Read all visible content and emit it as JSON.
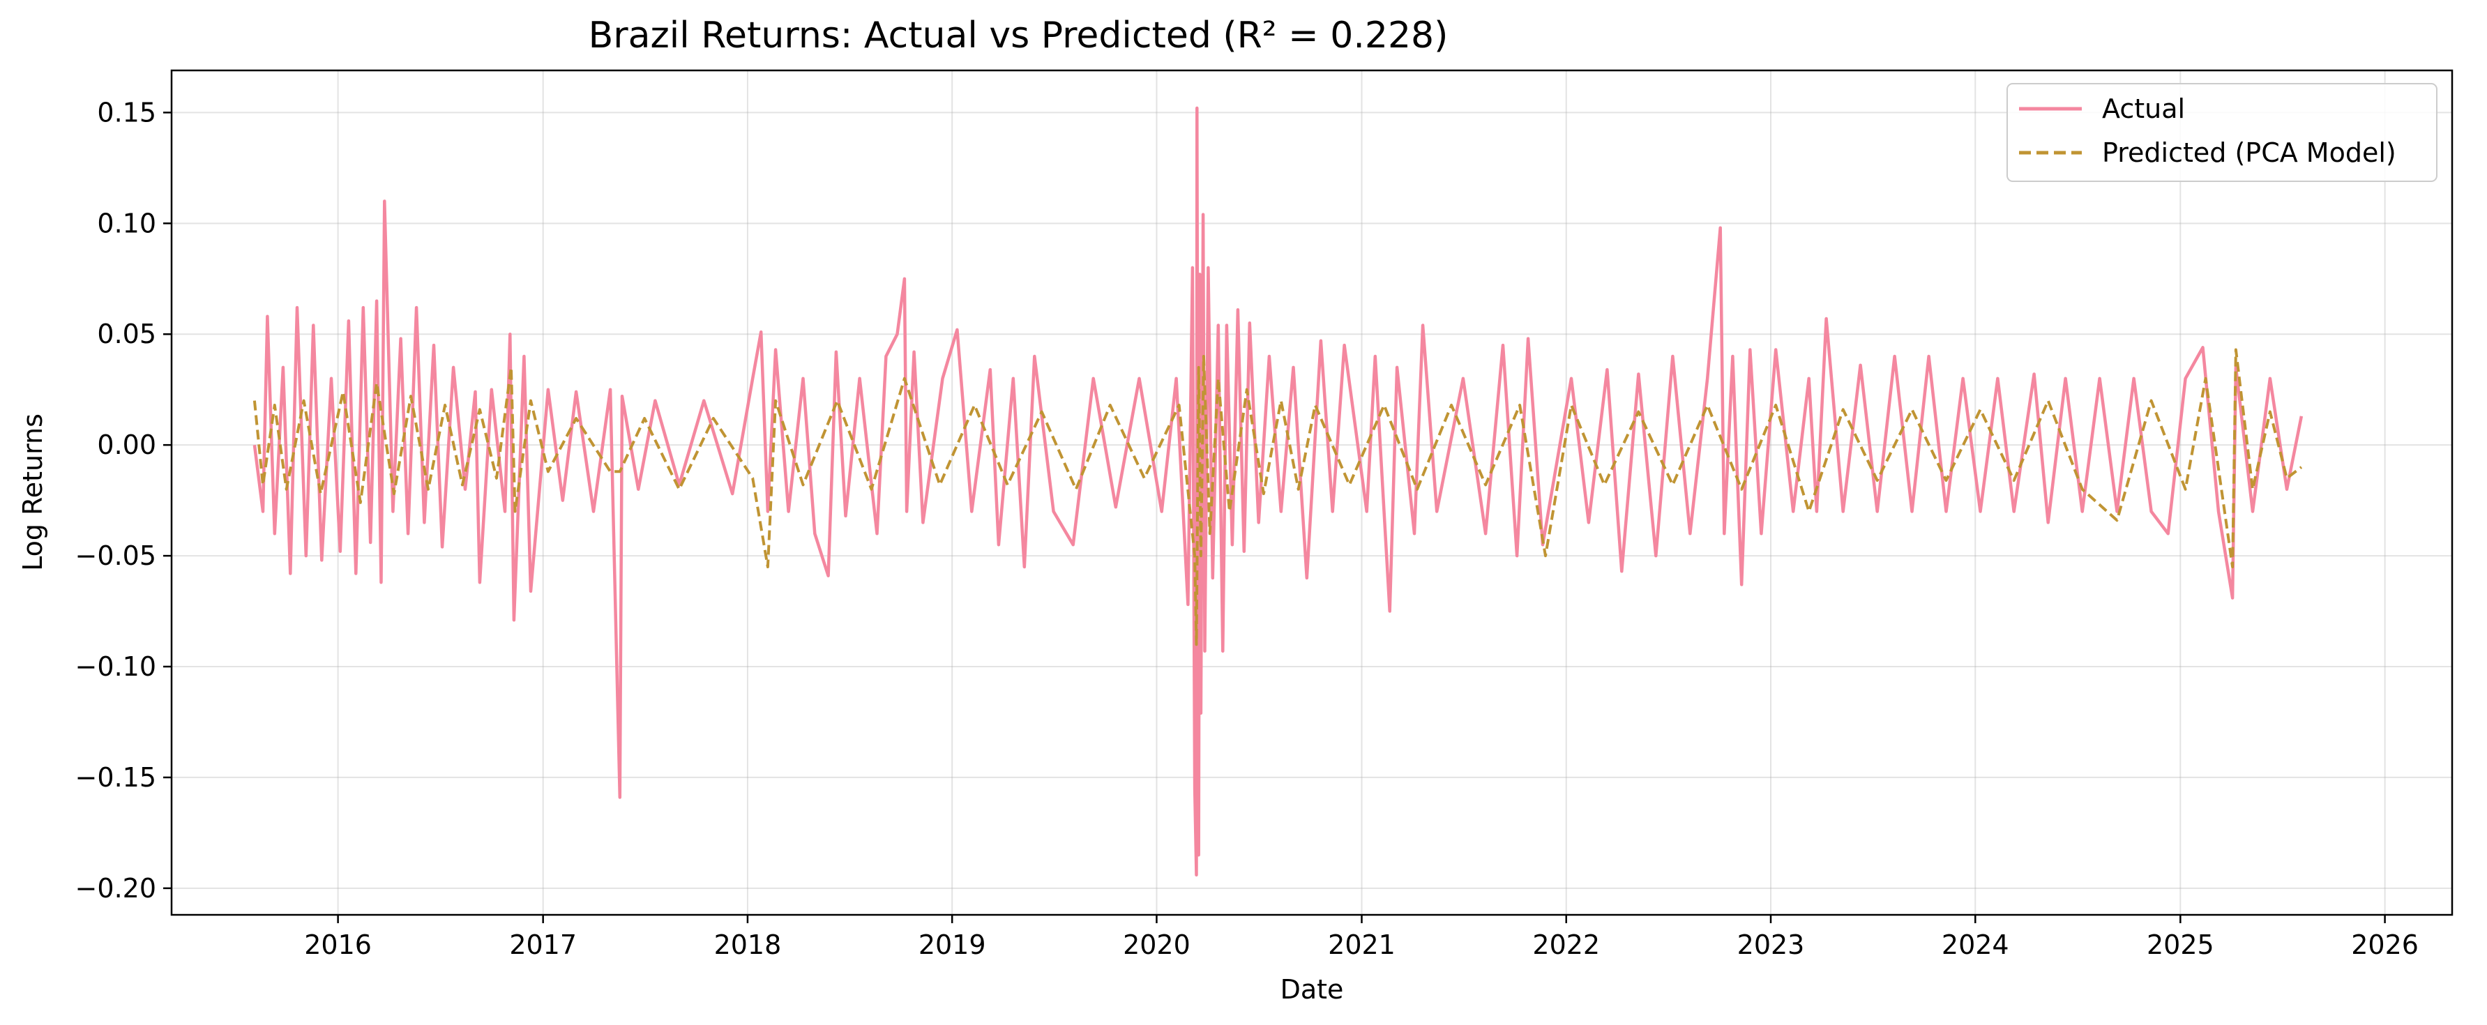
{
  "chart_data": {
    "type": "line",
    "title": "Brazil Returns: Actual vs Predicted (R² = 0.228)",
    "xlabel": "Date",
    "ylabel": "Log Returns",
    "xlim": [
      "2015-03-10",
      "2026-05-01"
    ],
    "ylim": [
      -0.212,
      0.169
    ],
    "x_ticks": [
      "2016",
      "2017",
      "2018",
      "2019",
      "2020",
      "2021",
      "2022",
      "2023",
      "2024",
      "2025",
      "2026"
    ],
    "y_ticks": [
      "0.15",
      "0.10",
      "0.05",
      "0.00",
      "−0.05",
      "−0.10",
      "−0.15",
      "−0.20"
    ],
    "y_tick_values": [
      0.15,
      0.1,
      0.05,
      0.0,
      -0.05,
      -0.1,
      -0.15,
      -0.2
    ],
    "grid": true,
    "legend_position": "top-right",
    "series": [
      {
        "name": "Actual",
        "color": "#f4879f",
        "style": "solid",
        "points": [
          [
            "2015-08-05",
            0.0
          ],
          [
            "2015-08-20",
            -0.03
          ],
          [
            "2015-08-28",
            0.058
          ],
          [
            "2015-09-10",
            -0.04
          ],
          [
            "2015-09-25",
            0.035
          ],
          [
            "2015-10-08",
            -0.058
          ],
          [
            "2015-10-20",
            0.062
          ],
          [
            "2015-11-05",
            -0.05
          ],
          [
            "2015-11-18",
            0.054
          ],
          [
            "2015-12-03",
            -0.052
          ],
          [
            "2015-12-20",
            0.03
          ],
          [
            "2016-01-05",
            -0.048
          ],
          [
            "2016-01-20",
            0.056
          ],
          [
            "2016-02-02",
            -0.058
          ],
          [
            "2016-02-15",
            0.062
          ],
          [
            "2016-02-28",
            -0.044
          ],
          [
            "2016-03-10",
            0.065
          ],
          [
            "2016-03-18",
            -0.062
          ],
          [
            "2016-03-24",
            0.11
          ],
          [
            "2016-04-08",
            -0.03
          ],
          [
            "2016-04-22",
            0.048
          ],
          [
            "2016-05-05",
            -0.04
          ],
          [
            "2016-05-20",
            0.062
          ],
          [
            "2016-06-03",
            -0.035
          ],
          [
            "2016-06-20",
            0.045
          ],
          [
            "2016-07-05",
            -0.046
          ],
          [
            "2016-07-25",
            0.035
          ],
          [
            "2016-08-15",
            -0.02
          ],
          [
            "2016-09-02",
            0.024
          ],
          [
            "2016-09-10",
            -0.062
          ],
          [
            "2016-10-01",
            0.025
          ],
          [
            "2016-10-25",
            -0.03
          ],
          [
            "2016-11-03",
            0.05
          ],
          [
            "2016-11-10",
            -0.079
          ],
          [
            "2016-11-28",
            0.04
          ],
          [
            "2016-12-10",
            -0.066
          ],
          [
            "2017-01-10",
            0.025
          ],
          [
            "2017-02-05",
            -0.025
          ],
          [
            "2017-03-01",
            0.024
          ],
          [
            "2017-04-01",
            -0.03
          ],
          [
            "2017-05-01",
            0.025
          ],
          [
            "2017-05-18",
            -0.159
          ],
          [
            "2017-05-22",
            0.022
          ],
          [
            "2017-06-20",
            -0.02
          ],
          [
            "2017-07-20",
            0.02
          ],
          [
            "2017-09-01",
            -0.018
          ],
          [
            "2017-10-15",
            0.02
          ],
          [
            "2017-12-05",
            -0.022
          ],
          [
            "2018-01-10",
            0.03
          ],
          [
            "2018-01-25",
            0.051
          ],
          [
            "2018-02-06",
            -0.03
          ],
          [
            "2018-02-20",
            0.043
          ],
          [
            "2018-03-15",
            -0.03
          ],
          [
            "2018-04-10",
            0.03
          ],
          [
            "2018-05-01",
            -0.04
          ],
          [
            "2018-05-25",
            -0.059
          ],
          [
            "2018-06-08",
            0.042
          ],
          [
            "2018-06-25",
            -0.032
          ],
          [
            "2018-07-20",
            0.03
          ],
          [
            "2018-08-20",
            -0.04
          ],
          [
            "2018-09-05",
            0.04
          ],
          [
            "2018-09-25",
            0.05
          ],
          [
            "2018-10-08",
            0.075
          ],
          [
            "2018-10-12",
            -0.03
          ],
          [
            "2018-10-25",
            0.042
          ],
          [
            "2018-11-10",
            -0.035
          ],
          [
            "2018-12-15",
            0.03
          ],
          [
            "2019-01-10",
            0.052
          ],
          [
            "2019-02-05",
            -0.03
          ],
          [
            "2019-03-10",
            0.034
          ],
          [
            "2019-03-25",
            -0.045
          ],
          [
            "2019-04-20",
            0.03
          ],
          [
            "2019-05-10",
            -0.055
          ],
          [
            "2019-05-28",
            0.04
          ],
          [
            "2019-07-01",
            -0.03
          ],
          [
            "2019-08-05",
            -0.045
          ],
          [
            "2019-09-10",
            0.03
          ],
          [
            "2019-10-20",
            -0.028
          ],
          [
            "2019-12-01",
            0.03
          ],
          [
            "2020-01-10",
            -0.03
          ],
          [
            "2020-02-05",
            0.03
          ],
          [
            "2020-02-26",
            -0.072
          ],
          [
            "2020-03-05",
            0.08
          ],
          [
            "2020-03-09",
            -0.155
          ],
          [
            "2020-03-12",
            -0.194
          ],
          [
            "2020-03-13",
            0.152
          ],
          [
            "2020-03-16",
            -0.185
          ],
          [
            "2020-03-18",
            0.077
          ],
          [
            "2020-03-20",
            -0.121
          ],
          [
            "2020-03-24",
            0.104
          ],
          [
            "2020-03-27",
            -0.093
          ],
          [
            "2020-04-02",
            0.08
          ],
          [
            "2020-04-10",
            -0.06
          ],
          [
            "2020-04-20",
            0.054
          ],
          [
            "2020-04-28",
            -0.093
          ],
          [
            "2020-05-05",
            0.054
          ],
          [
            "2020-05-15",
            -0.045
          ],
          [
            "2020-05-25",
            0.061
          ],
          [
            "2020-06-05",
            -0.048
          ],
          [
            "2020-06-15",
            0.055
          ],
          [
            "2020-07-01",
            -0.035
          ],
          [
            "2020-07-20",
            0.04
          ],
          [
            "2020-08-10",
            -0.03
          ],
          [
            "2020-09-01",
            0.035
          ],
          [
            "2020-09-25",
            -0.06
          ],
          [
            "2020-10-20",
            0.047
          ],
          [
            "2020-11-10",
            -0.03
          ],
          [
            "2020-12-01",
            0.045
          ],
          [
            "2021-01-10",
            -0.03
          ],
          [
            "2021-01-25",
            0.04
          ],
          [
            "2021-02-20",
            -0.075
          ],
          [
            "2021-03-05",
            0.035
          ],
          [
            "2021-04-05",
            -0.04
          ],
          [
            "2021-04-20",
            0.054
          ],
          [
            "2021-05-15",
            -0.03
          ],
          [
            "2021-07-01",
            0.03
          ],
          [
            "2021-08-10",
            -0.04
          ],
          [
            "2021-09-10",
            0.045
          ],
          [
            "2021-10-05",
            -0.05
          ],
          [
            "2021-10-25",
            0.048
          ],
          [
            "2021-11-20",
            -0.045
          ],
          [
            "2022-01-10",
            0.03
          ],
          [
            "2022-02-10",
            -0.035
          ],
          [
            "2022-03-15",
            0.034
          ],
          [
            "2022-04-10",
            -0.057
          ],
          [
            "2022-05-10",
            0.032
          ],
          [
            "2022-06-10",
            -0.05
          ],
          [
            "2022-07-10",
            0.04
          ],
          [
            "2022-08-10",
            -0.04
          ],
          [
            "2022-09-10",
            0.03
          ],
          [
            "2022-10-03",
            0.098
          ],
          [
            "2022-10-10",
            -0.04
          ],
          [
            "2022-10-25",
            0.04
          ],
          [
            "2022-11-10",
            -0.063
          ],
          [
            "2022-11-25",
            0.043
          ],
          [
            "2022-12-15",
            -0.04
          ],
          [
            "2023-01-10",
            0.043
          ],
          [
            "2023-02-10",
            -0.03
          ],
          [
            "2023-03-10",
            0.03
          ],
          [
            "2023-03-24",
            -0.03
          ],
          [
            "2023-04-10",
            0.057
          ],
          [
            "2023-05-10",
            -0.03
          ],
          [
            "2023-06-10",
            0.036
          ],
          [
            "2023-07-10",
            -0.03
          ],
          [
            "2023-08-10",
            0.04
          ],
          [
            "2023-09-10",
            -0.03
          ],
          [
            "2023-10-10",
            0.04
          ],
          [
            "2023-11-10",
            -0.03
          ],
          [
            "2023-12-10",
            0.03
          ],
          [
            "2024-01-10",
            -0.03
          ],
          [
            "2024-02-10",
            0.03
          ],
          [
            "2024-03-10",
            -0.03
          ],
          [
            "2024-04-15",
            0.032
          ],
          [
            "2024-05-10",
            -0.035
          ],
          [
            "2024-06-10",
            0.03
          ],
          [
            "2024-07-10",
            -0.03
          ],
          [
            "2024-08-10",
            0.03
          ],
          [
            "2024-09-10",
            -0.03
          ],
          [
            "2024-10-10",
            0.03
          ],
          [
            "2024-11-10",
            -0.03
          ],
          [
            "2024-12-10",
            -0.04
          ],
          [
            "2025-01-10",
            0.03
          ],
          [
            "2025-02-10",
            0.044
          ],
          [
            "2025-03-10",
            -0.03
          ],
          [
            "2025-04-04",
            -0.069
          ],
          [
            "2025-04-10",
            0.035
          ],
          [
            "2025-05-10",
            -0.03
          ],
          [
            "2025-06-10",
            0.03
          ],
          [
            "2025-07-10",
            -0.02
          ],
          [
            "2025-08-05",
            0.013
          ]
        ]
      },
      {
        "name": "Predicted (PCA Model)",
        "color": "#c09433",
        "style": "dashed",
        "points": [
          [
            "2015-08-05",
            0.02
          ],
          [
            "2015-08-20",
            -0.018
          ],
          [
            "2015-09-10",
            0.018
          ],
          [
            "2015-10-01",
            -0.02
          ],
          [
            "2015-11-01",
            0.02
          ],
          [
            "2015-12-01",
            -0.022
          ],
          [
            "2016-01-10",
            0.024
          ],
          [
            "2016-02-10",
            -0.026
          ],
          [
            "2016-03-10",
            0.028
          ],
          [
            "2016-04-10",
            -0.022
          ],
          [
            "2016-05-10",
            0.022
          ],
          [
            "2016-06-10",
            -0.02
          ],
          [
            "2016-07-10",
            0.018
          ],
          [
            "2016-08-10",
            -0.018
          ],
          [
            "2016-09-10",
            0.016
          ],
          [
            "2016-10-10",
            -0.015
          ],
          [
            "2016-11-05",
            0.035
          ],
          [
            "2016-11-12",
            -0.03
          ],
          [
            "2016-12-10",
            0.02
          ],
          [
            "2017-01-10",
            -0.012
          ],
          [
            "2017-03-01",
            0.012
          ],
          [
            "2017-05-01",
            -0.012
          ],
          [
            "2017-05-18",
            -0.012
          ],
          [
            "2017-07-01",
            0.012
          ],
          [
            "2017-09-01",
            -0.02
          ],
          [
            "2017-11-01",
            0.012
          ],
          [
            "2018-01-10",
            -0.015
          ],
          [
            "2018-02-06",
            -0.055
          ],
          [
            "2018-02-20",
            0.02
          ],
          [
            "2018-04-10",
            -0.018
          ],
          [
            "2018-06-10",
            0.02
          ],
          [
            "2018-08-10",
            -0.02
          ],
          [
            "2018-10-08",
            0.03
          ],
          [
            "2018-12-10",
            -0.018
          ],
          [
            "2019-02-10",
            0.018
          ],
          [
            "2019-04-10",
            -0.018
          ],
          [
            "2019-06-10",
            0.015
          ],
          [
            "2019-08-10",
            -0.02
          ],
          [
            "2019-10-10",
            0.018
          ],
          [
            "2019-12-10",
            -0.015
          ],
          [
            "2020-02-10",
            0.018
          ],
          [
            "2020-03-09",
            -0.05
          ],
          [
            "2020-03-12",
            -0.09
          ],
          [
            "2020-03-16",
            0.035
          ],
          [
            "2020-03-20",
            -0.05
          ],
          [
            "2020-03-25",
            0.04
          ],
          [
            "2020-04-05",
            -0.04
          ],
          [
            "2020-04-20",
            0.03
          ],
          [
            "2020-05-10",
            -0.03
          ],
          [
            "2020-06-10",
            0.025
          ],
          [
            "2020-07-10",
            -0.022
          ],
          [
            "2020-08-10",
            0.02
          ],
          [
            "2020-09-10",
            -0.02
          ],
          [
            "2020-10-10",
            0.018
          ],
          [
            "2020-12-10",
            -0.018
          ],
          [
            "2021-02-10",
            0.018
          ],
          [
            "2021-04-10",
            -0.02
          ],
          [
            "2021-06-10",
            0.018
          ],
          [
            "2021-08-10",
            -0.018
          ],
          [
            "2021-10-10",
            0.018
          ],
          [
            "2021-11-25",
            -0.05
          ],
          [
            "2022-01-10",
            0.018
          ],
          [
            "2022-03-10",
            -0.018
          ],
          [
            "2022-05-10",
            0.015
          ],
          [
            "2022-07-10",
            -0.018
          ],
          [
            "2022-09-10",
            0.018
          ],
          [
            "2022-11-10",
            -0.02
          ],
          [
            "2023-01-10",
            0.018
          ],
          [
            "2023-03-10",
            -0.03
          ],
          [
            "2023-05-10",
            0.016
          ],
          [
            "2023-07-10",
            -0.016
          ],
          [
            "2023-09-10",
            0.016
          ],
          [
            "2023-11-10",
            -0.016
          ],
          [
            "2024-01-10",
            0.016
          ],
          [
            "2024-03-10",
            -0.016
          ],
          [
            "2024-05-10",
            0.02
          ],
          [
            "2024-07-10",
            -0.02
          ],
          [
            "2024-09-10",
            -0.034
          ],
          [
            "2024-11-10",
            0.02
          ],
          [
            "2025-01-10",
            -0.02
          ],
          [
            "2025-02-15",
            0.03
          ],
          [
            "2025-04-04",
            -0.055
          ],
          [
            "2025-04-10",
            0.043
          ],
          [
            "2025-05-10",
            -0.02
          ],
          [
            "2025-06-10",
            0.015
          ],
          [
            "2025-07-10",
            -0.015
          ],
          [
            "2025-08-05",
            -0.01
          ]
        ]
      }
    ]
  }
}
